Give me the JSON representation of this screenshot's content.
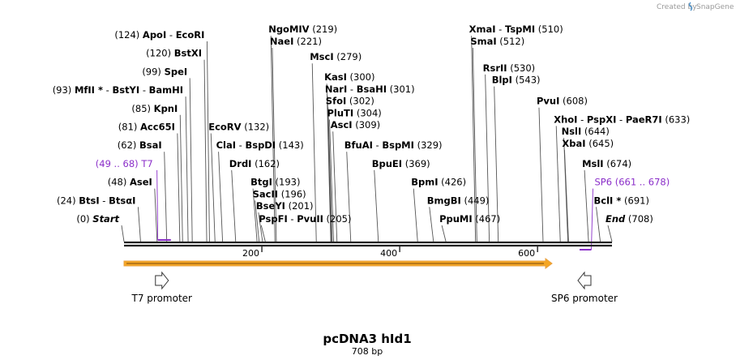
{
  "credit": {
    "text": "Created by",
    "brand": "SnapGene"
  },
  "title": "pcDNA3 hId1",
  "subtitle": "708 bp",
  "length": 708,
  "colors": {
    "primer": "#8b2fc9",
    "orf_fill": "#f5a623",
    "backbone": "#222222",
    "leader": "#555555"
  },
  "axis_ticks": [
    {
      "pos": 200,
      "label": "200"
    },
    {
      "pos": 400,
      "label": "400"
    },
    {
      "pos": 600,
      "label": "600"
    }
  ],
  "orf": {
    "start": 1,
    "end": 621
  },
  "features": [
    {
      "name": "T7 promoter",
      "pos": 55,
      "direction": "forward"
    },
    {
      "name": "SP6 promoter",
      "pos": 668,
      "direction": "reverse"
    }
  ],
  "primers": [
    {
      "label": "T7",
      "range": "(49 .. 68)",
      "start": 49,
      "end": 68,
      "side": "left"
    },
    {
      "label": "SP6",
      "range": "(661 .. 678)",
      "start": 661,
      "end": 678,
      "side": "right"
    }
  ],
  "sites": [
    {
      "pos": 0,
      "pos_label": "(0)",
      "names": [
        "Start"
      ],
      "side": "left",
      "row": 0,
      "kind": "endpoint"
    },
    {
      "pos": 24,
      "pos_label": "(24)",
      "names": [
        "BtsI",
        "BtsαI"
      ],
      "side": "left",
      "row": 1
    },
    {
      "pos": 48,
      "pos_label": "(48)",
      "names": [
        "AseI"
      ],
      "side": "left",
      "row": 2
    },
    {
      "pos": 62,
      "pos_label": "(62)",
      "names": [
        "BsaI"
      ],
      "side": "left",
      "row": 4
    },
    {
      "pos": 81,
      "pos_label": "(81)",
      "names": [
        "Acc65I"
      ],
      "side": "left",
      "row": 5
    },
    {
      "pos": 85,
      "pos_label": "(85)",
      "names": [
        "KpnI"
      ],
      "side": "left",
      "row": 6
    },
    {
      "pos": 93,
      "pos_label": "(93)",
      "names": [
        "MfII *",
        "BstYI",
        "BamHI"
      ],
      "side": "left",
      "row": 7
    },
    {
      "pos": 99,
      "pos_label": "(99)",
      "names": [
        "SpeI"
      ],
      "side": "left",
      "row": 8
    },
    {
      "pos": 120,
      "pos_label": "(120)",
      "names": [
        "BstXI"
      ],
      "side": "left",
      "row": 9
    },
    {
      "pos": 124,
      "pos_label": "(124)",
      "names": [
        "ApoI",
        "EcoRI"
      ],
      "side": "left",
      "row": 10
    },
    {
      "pos": 132,
      "pos_label": "(132)",
      "names": [
        "EcoRV"
      ],
      "side": "right",
      "row": 5
    },
    {
      "pos": 143,
      "pos_label": "(143)",
      "names": [
        "ClaI",
        "BspDI"
      ],
      "side": "right",
      "row": 4
    },
    {
      "pos": 162,
      "pos_label": "(162)",
      "names": [
        "DrdI"
      ],
      "side": "right",
      "row": 3
    },
    {
      "pos": 193,
      "pos_label": "(193)",
      "names": [
        "BtgI"
      ],
      "side": "right",
      "row": 2
    },
    {
      "pos": 196,
      "pos_label": "(196)",
      "names": [
        "SacII"
      ],
      "side": "right",
      "row": 1.35
    },
    {
      "pos": 201,
      "pos_label": "(201)",
      "names": [
        "BseYI"
      ],
      "side": "right",
      "row": 0.7
    },
    {
      "pos": 205,
      "pos_label": "(205)",
      "names": [
        "PspFI",
        "PvuII"
      ],
      "side": "right",
      "row": 0
    },
    {
      "pos": 219,
      "pos_label": "(219)",
      "names": [
        "NgoMIV"
      ],
      "side": "right",
      "row": 10.3
    },
    {
      "pos": 221,
      "pos_label": "(221)",
      "names": [
        "NaeI"
      ],
      "side": "right",
      "row": 9.65
    },
    {
      "pos": 279,
      "pos_label": "(279)",
      "names": [
        "MscI"
      ],
      "side": "right",
      "row": 8.8
    },
    {
      "pos": 300,
      "pos_label": "(300)",
      "names": [
        "KasI"
      ],
      "side": "right",
      "row": 7.7
    },
    {
      "pos": 301,
      "pos_label": "(301)",
      "names": [
        "NarI",
        "BsaHI"
      ],
      "side": "right",
      "row": 7.05
    },
    {
      "pos": 302,
      "pos_label": "(302)",
      "names": [
        "SfoI"
      ],
      "side": "right",
      "row": 6.4
    },
    {
      "pos": 304,
      "pos_label": "(304)",
      "names": [
        "PluTI"
      ],
      "side": "right",
      "row": 5.75
    },
    {
      "pos": 309,
      "pos_label": "(309)",
      "names": [
        "AscI"
      ],
      "side": "right",
      "row": 5.1
    },
    {
      "pos": 329,
      "pos_label": "(329)",
      "names": [
        "BfuAI",
        "BspMI"
      ],
      "side": "right",
      "row": 4
    },
    {
      "pos": 369,
      "pos_label": "(369)",
      "names": [
        "BpuEI"
      ],
      "side": "right",
      "row": 3
    },
    {
      "pos": 426,
      "pos_label": "(426)",
      "names": [
        "BpmI"
      ],
      "side": "right",
      "row": 2
    },
    {
      "pos": 449,
      "pos_label": "(449)",
      "names": [
        "BmgBI"
      ],
      "side": "right",
      "row": 1
    },
    {
      "pos": 467,
      "pos_label": "(467)",
      "names": [
        "PpuMI"
      ],
      "side": "right",
      "row": 0
    },
    {
      "pos": 510,
      "pos_label": "(510)",
      "names": [
        "XmaI",
        "TspMI"
      ],
      "side": "right",
      "row": 10.3
    },
    {
      "pos": 512,
      "pos_label": "(512)",
      "names": [
        "SmaI"
      ],
      "side": "right",
      "row": 9.65
    },
    {
      "pos": 530,
      "pos_label": "(530)",
      "names": [
        "RsrII"
      ],
      "side": "right",
      "row": 8.2
    },
    {
      "pos": 543,
      "pos_label": "(543)",
      "names": [
        "BlpI"
      ],
      "side": "right",
      "row": 7.55
    },
    {
      "pos": 608,
      "pos_label": "(608)",
      "names": [
        "PvuI"
      ],
      "side": "right",
      "row": 6.4
    },
    {
      "pos": 633,
      "pos_label": "(633)",
      "names": [
        "XhoI",
        "PspXI",
        "PaeR7I"
      ],
      "side": "right",
      "row": 5.4
    },
    {
      "pos": 644,
      "pos_label": "(644)",
      "names": [
        "NslI"
      ],
      "side": "right",
      "row": 4.75
    },
    {
      "pos": 645,
      "pos_label": "(645)",
      "names": [
        "XbaI"
      ],
      "side": "right",
      "row": 4.1
    },
    {
      "pos": 674,
      "pos_label": "(674)",
      "names": [
        "MslI"
      ],
      "side": "right",
      "row": 3
    },
    {
      "pos": 691,
      "pos_label": "(691)",
      "names": [
        "BclI *"
      ],
      "side": "right",
      "row": 1
    },
    {
      "pos": 708,
      "pos_label": "(708)",
      "names": [
        "End"
      ],
      "side": "right",
      "row": 0,
      "kind": "endpoint"
    }
  ]
}
